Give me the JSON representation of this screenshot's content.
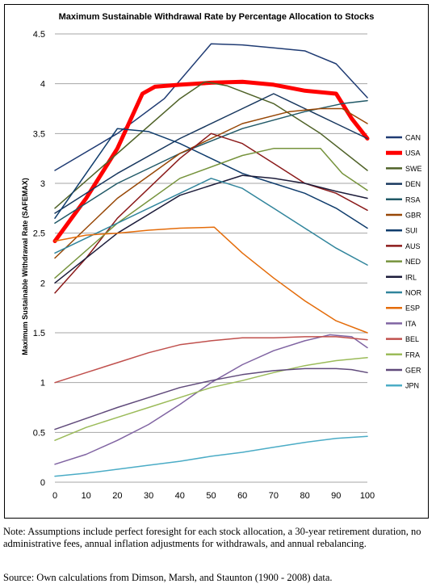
{
  "chart_data": {
    "type": "line",
    "title": "Maximum Sustainable Withdrawal Rate by Percentage Allocation to Stocks",
    "xlabel": "",
    "ylabel": "Maximum Sustainable Withdrawal Rate (SAFEMAX)",
    "xlim": [
      0,
      100
    ],
    "ylim": [
      0,
      4.5
    ],
    "xticks": [
      0,
      10,
      20,
      30,
      40,
      50,
      60,
      70,
      80,
      90,
      100
    ],
    "yticks": [
      "0",
      "0.5",
      "1",
      "1.5",
      "2",
      "2.5",
      "3",
      "3.5",
      "4",
      "4.5"
    ],
    "grid": "horizontal",
    "legend_position": "right",
    "series": [
      {
        "name": "CAN",
        "color": "#1f3b73",
        "width": 1.5,
        "points": [
          [
            0,
            3.13
          ],
          [
            20,
            3.5
          ],
          [
            35,
            3.85
          ],
          [
            50,
            4.4
          ],
          [
            60,
            4.39
          ],
          [
            70,
            4.36
          ],
          [
            80,
            4.33
          ],
          [
            90,
            4.2
          ],
          [
            100,
            3.86
          ]
        ]
      },
      {
        "name": "USA",
        "color": "#ff0000",
        "width": 5,
        "points": [
          [
            0,
            2.42
          ],
          [
            10,
            2.85
          ],
          [
            20,
            3.35
          ],
          [
            28,
            3.9
          ],
          [
            32,
            3.97
          ],
          [
            40,
            3.99
          ],
          [
            50,
            4.01
          ],
          [
            60,
            4.02
          ],
          [
            70,
            3.99
          ],
          [
            80,
            3.93
          ],
          [
            90,
            3.9
          ],
          [
            95,
            3.65
          ],
          [
            100,
            3.45
          ]
        ]
      },
      {
        "name": "SWE",
        "color": "#4f6228",
        "width": 1.5,
        "points": [
          [
            0,
            2.75
          ],
          [
            20,
            3.3
          ],
          [
            40,
            3.85
          ],
          [
            48,
            4.02
          ],
          [
            55,
            3.98
          ],
          [
            70,
            3.8
          ],
          [
            85,
            3.5
          ],
          [
            100,
            3.13
          ]
        ]
      },
      {
        "name": "DEN",
        "color": "#17375e",
        "width": 1.5,
        "points": [
          [
            0,
            2.7
          ],
          [
            20,
            3.1
          ],
          [
            40,
            3.45
          ],
          [
            60,
            3.75
          ],
          [
            70,
            3.9
          ],
          [
            80,
            3.75
          ],
          [
            90,
            3.6
          ],
          [
            100,
            3.45
          ]
        ]
      },
      {
        "name": "RSA",
        "color": "#215967",
        "width": 1.5,
        "points": [
          [
            0,
            2.6
          ],
          [
            20,
            3.0
          ],
          [
            40,
            3.3
          ],
          [
            60,
            3.55
          ],
          [
            80,
            3.72
          ],
          [
            92,
            3.8
          ],
          [
            100,
            3.83
          ]
        ]
      },
      {
        "name": "GBR",
        "color": "#974706",
        "width": 1.5,
        "points": [
          [
            0,
            2.25
          ],
          [
            20,
            2.85
          ],
          [
            40,
            3.3
          ],
          [
            60,
            3.6
          ],
          [
            75,
            3.72
          ],
          [
            85,
            3.75
          ],
          [
            92,
            3.75
          ],
          [
            100,
            3.6
          ]
        ]
      },
      {
        "name": "SUI",
        "color": "#0f3c6c",
        "width": 1.5,
        "points": [
          [
            0,
            2.65
          ],
          [
            10,
            3.1
          ],
          [
            20,
            3.55
          ],
          [
            30,
            3.52
          ],
          [
            40,
            3.4
          ],
          [
            50,
            3.25
          ],
          [
            60,
            3.1
          ],
          [
            70,
            3.0
          ],
          [
            80,
            2.9
          ],
          [
            90,
            2.75
          ],
          [
            100,
            2.55
          ]
        ]
      },
      {
        "name": "AUS",
        "color": "#8b1a1a",
        "width": 1.5,
        "points": [
          [
            0,
            1.9
          ],
          [
            10,
            2.25
          ],
          [
            20,
            2.65
          ],
          [
            30,
            2.95
          ],
          [
            40,
            3.25
          ],
          [
            50,
            3.5
          ],
          [
            60,
            3.4
          ],
          [
            70,
            3.2
          ],
          [
            80,
            3.0
          ],
          [
            90,
            2.9
          ],
          [
            100,
            2.73
          ]
        ]
      },
      {
        "name": "NED",
        "color": "#76933c",
        "width": 1.5,
        "points": [
          [
            0,
            2.05
          ],
          [
            20,
            2.6
          ],
          [
            40,
            3.05
          ],
          [
            60,
            3.28
          ],
          [
            70,
            3.35
          ],
          [
            80,
            3.35
          ],
          [
            85,
            3.35
          ],
          [
            92,
            3.1
          ],
          [
            100,
            2.93
          ]
        ]
      },
      {
        "name": "IRL",
        "color": "#1c1c3a",
        "width": 1.5,
        "points": [
          [
            0,
            2.0
          ],
          [
            20,
            2.5
          ],
          [
            40,
            2.88
          ],
          [
            60,
            3.08
          ],
          [
            70,
            3.05
          ],
          [
            80,
            3.0
          ],
          [
            90,
            2.92
          ],
          [
            100,
            2.85
          ]
        ]
      },
      {
        "name": "NOR",
        "color": "#31859c",
        "width": 1.5,
        "points": [
          [
            0,
            2.3
          ],
          [
            20,
            2.6
          ],
          [
            40,
            2.9
          ],
          [
            50,
            3.05
          ],
          [
            60,
            2.95
          ],
          [
            70,
            2.75
          ],
          [
            80,
            2.55
          ],
          [
            90,
            2.35
          ],
          [
            100,
            2.18
          ]
        ]
      },
      {
        "name": "ESP",
        "color": "#e46c0a",
        "width": 1.5,
        "points": [
          [
            0,
            2.42
          ],
          [
            10,
            2.48
          ],
          [
            20,
            2.5
          ],
          [
            30,
            2.53
          ],
          [
            40,
            2.55
          ],
          [
            51,
            2.56
          ],
          [
            60,
            2.3
          ],
          [
            70,
            2.05
          ],
          [
            80,
            1.82
          ],
          [
            90,
            1.62
          ],
          [
            100,
            1.5
          ]
        ]
      },
      {
        "name": "ITA",
        "color": "#8064a2",
        "width": 1.5,
        "points": [
          [
            0,
            0.18
          ],
          [
            10,
            0.28
          ],
          [
            20,
            0.42
          ],
          [
            30,
            0.58
          ],
          [
            40,
            0.78
          ],
          [
            50,
            1.0
          ],
          [
            60,
            1.18
          ],
          [
            70,
            1.32
          ],
          [
            80,
            1.42
          ],
          [
            88,
            1.48
          ],
          [
            95,
            1.46
          ],
          [
            100,
            1.35
          ]
        ]
      },
      {
        "name": "BEL",
        "color": "#c0504d",
        "width": 1.5,
        "points": [
          [
            0,
            1.0
          ],
          [
            10,
            1.1
          ],
          [
            20,
            1.2
          ],
          [
            30,
            1.3
          ],
          [
            40,
            1.38
          ],
          [
            50,
            1.42
          ],
          [
            60,
            1.45
          ],
          [
            70,
            1.45
          ],
          [
            80,
            1.46
          ],
          [
            90,
            1.46
          ],
          [
            100,
            1.43
          ]
        ]
      },
      {
        "name": "FRA",
        "color": "#9bbb59",
        "width": 1.5,
        "points": [
          [
            0,
            0.42
          ],
          [
            10,
            0.55
          ],
          [
            20,
            0.65
          ],
          [
            30,
            0.75
          ],
          [
            40,
            0.85
          ],
          [
            50,
            0.95
          ],
          [
            60,
            1.02
          ],
          [
            70,
            1.1
          ],
          [
            80,
            1.17
          ],
          [
            90,
            1.22
          ],
          [
            100,
            1.25
          ]
        ]
      },
      {
        "name": "GER",
        "color": "#604a7b",
        "width": 1.5,
        "points": [
          [
            0,
            0.53
          ],
          [
            10,
            0.64
          ],
          [
            20,
            0.75
          ],
          [
            30,
            0.85
          ],
          [
            40,
            0.95
          ],
          [
            50,
            1.02
          ],
          [
            60,
            1.08
          ],
          [
            70,
            1.12
          ],
          [
            80,
            1.14
          ],
          [
            90,
            1.14
          ],
          [
            95,
            1.13
          ],
          [
            100,
            1.1
          ]
        ]
      },
      {
        "name": "JPN",
        "color": "#4bacc6",
        "width": 1.5,
        "points": [
          [
            0,
            0.06
          ],
          [
            10,
            0.09
          ],
          [
            20,
            0.13
          ],
          [
            30,
            0.17
          ],
          [
            40,
            0.21
          ],
          [
            50,
            0.26
          ],
          [
            60,
            0.3
          ],
          [
            70,
            0.35
          ],
          [
            80,
            0.4
          ],
          [
            90,
            0.44
          ],
          [
            100,
            0.46
          ]
        ]
      }
    ]
  },
  "notes": {
    "note": "Note: Assumptions include perfect foresight for each stock allocation, a 30-year retirement duration, no administrative fees, annual inflation adjustments for withdrawals, and annual rebalancing.",
    "source": "Source: Own calculations from Dimson, Marsh, and Staunton (1900 - 2008) data."
  }
}
